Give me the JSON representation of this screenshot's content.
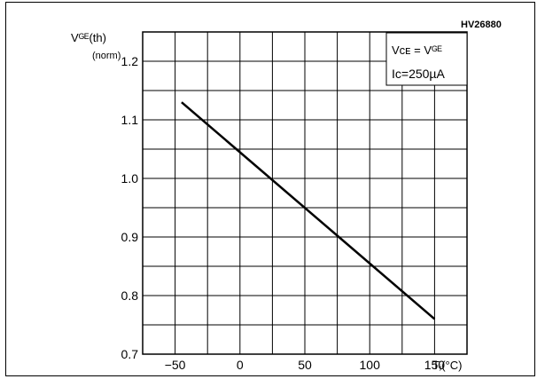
{
  "figure_id": "HV26880",
  "chart_data": {
    "type": "line",
    "title": "",
    "xlabel": "Tⱼ(°C)",
    "ylabel": "Vᴳᴱ(th)",
    "ylabel_sub": "(norm)",
    "xlim": [
      -75,
      175
    ],
    "ylim": [
      0.7,
      1.25
    ],
    "x_ticks": [
      -50,
      0,
      50,
      100,
      150
    ],
    "x_tick_labels": [
      "−50",
      "0",
      "50",
      "100",
      "150"
    ],
    "y_ticks": [
      0.7,
      0.8,
      0.9,
      1.0,
      1.1,
      1.2
    ],
    "y_tick_labels": [
      "0.7",
      "0.8",
      "0.9",
      "1.0",
      "1.1",
      "1.2"
    ],
    "grid": true,
    "annotations": [
      "Vᴄᴇ = Vᴳᴱ",
      "Iᴄ=250µA"
    ],
    "series": [
      {
        "x": [
          -45,
          150
        ],
        "y": [
          1.13,
          0.76
        ]
      }
    ]
  }
}
